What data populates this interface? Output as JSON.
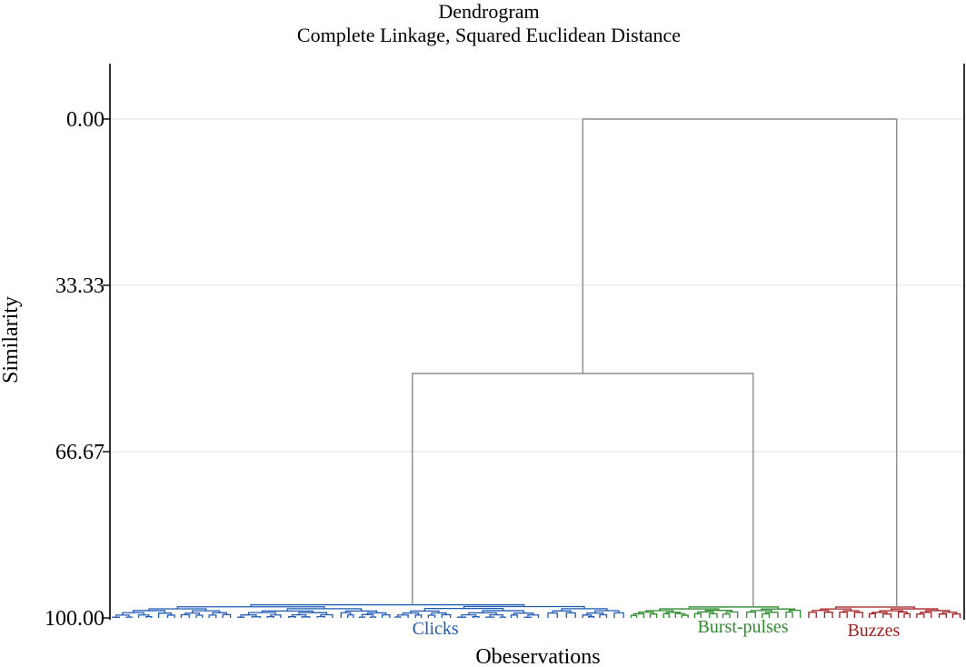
{
  "chart_data": {
    "type": "dendrogram",
    "title": "Dendrogram",
    "subtitle": "Complete Linkage, Squared Euclidean Distance",
    "xlabel": "Obeservations",
    "ylabel": "Similarity",
    "ylim": [
      0,
      100
    ],
    "y_reversed": true,
    "y_ticks": [
      "0.00",
      "33.33",
      "66.67",
      "100.00"
    ],
    "y_tick_values": [
      0,
      33.33,
      66.67,
      100
    ],
    "grid": true,
    "clusters": [
      {
        "name": "Clicks",
        "color": "#1f5bb5",
        "x_range": [
          0,
          0.607
        ]
      },
      {
        "name": "Burst-pulses",
        "color": "#2e8b2e",
        "x_range": [
          0.607,
          0.814
        ]
      },
      {
        "name": "Buzzes",
        "color": "#a31f1f",
        "x_range": [
          0.814,
          1
        ]
      }
    ],
    "links": [
      {
        "clusters": [
          "Clicks",
          "Burst-pulses"
        ],
        "similarity": 51
      },
      {
        "clusters": [
          "Clicks+Burst-pulses",
          "Buzzes"
        ],
        "similarity": 0
      }
    ],
    "link_color": "#8c8c8c"
  }
}
